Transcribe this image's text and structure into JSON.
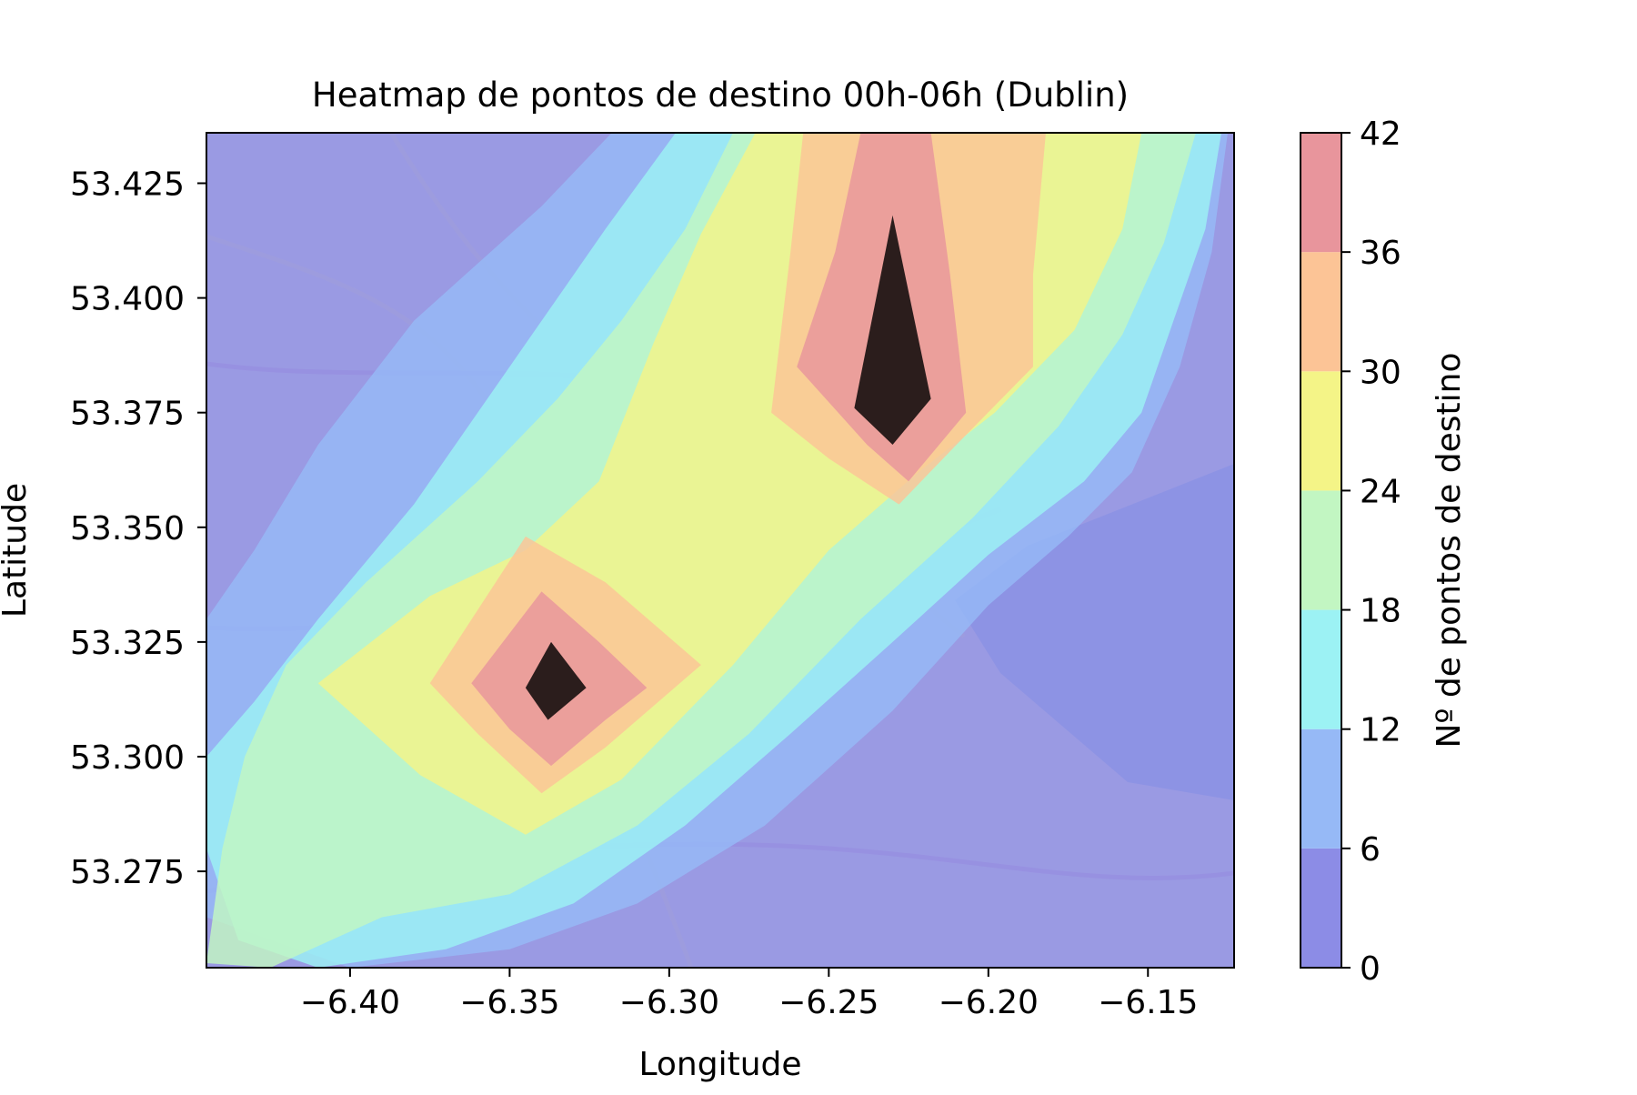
{
  "chart_data": {
    "type": "heatmap",
    "subtype": "filled-contour over map",
    "title": "Heatmap de pontos de destino 00h-06h (Dublin)",
    "xlabel": "Longitude",
    "ylabel": "Latitude",
    "xlim": [
      -6.445,
      -6.123
    ],
    "ylim": [
      53.254,
      53.436
    ],
    "xticks": [
      -6.4,
      -6.35,
      -6.3,
      -6.25,
      -6.2,
      -6.15
    ],
    "xtick_labels": [
      "−6.40",
      "−6.35",
      "−6.30",
      "−6.25",
      "−6.20",
      "−6.15"
    ],
    "yticks": [
      53.275,
      53.3,
      53.325,
      53.35,
      53.375,
      53.4,
      53.425
    ],
    "ytick_labels": [
      "53.275",
      "53.300",
      "53.325",
      "53.350",
      "53.375",
      "53.400",
      "53.425"
    ],
    "colorbar": {
      "label": "Nº de pontos de destino",
      "levels": [
        0,
        6,
        12,
        18,
        24,
        30,
        36,
        42
      ],
      "level_labels": [
        "0",
        "6",
        "12",
        "18",
        "24",
        "30",
        "36",
        "42"
      ],
      "colors": [
        "#8c8ce6",
        "#96b9f6",
        "#9cf2f4",
        "#c2f6c2",
        "#f4f487",
        "#fcc496",
        "#e8959c"
      ]
    },
    "hotspots": [
      {
        "lon": -6.232,
        "lat": 53.392,
        "peak": 42
      },
      {
        "lon": -6.338,
        "lat": 53.316,
        "peak": 42
      }
    ],
    "contours": [
      {
        "level": 0,
        "points": [
          [
            -6.445,
            53.254
          ],
          [
            -6.123,
            53.254
          ],
          [
            -6.123,
            53.436
          ],
          [
            -6.445,
            53.436
          ]
        ]
      },
      {
        "level": 6,
        "points": [
          [
            -6.445,
            53.265
          ],
          [
            -6.4,
            53.254
          ],
          [
            -6.35,
            53.258
          ],
          [
            -6.31,
            53.268
          ],
          [
            -6.27,
            53.285
          ],
          [
            -6.23,
            53.31
          ],
          [
            -6.2,
            53.333
          ],
          [
            -6.175,
            53.348
          ],
          [
            -6.155,
            53.362
          ],
          [
            -6.14,
            53.385
          ],
          [
            -6.13,
            53.41
          ],
          [
            -6.125,
            53.436
          ],
          [
            -6.318,
            53.436
          ],
          [
            -6.34,
            53.42
          ],
          [
            -6.38,
            53.395
          ],
          [
            -6.41,
            53.368
          ],
          [
            -6.43,
            53.345
          ],
          [
            -6.445,
            53.33
          ]
        ]
      },
      {
        "level": 12,
        "points": [
          [
            -6.445,
            53.28
          ],
          [
            -6.435,
            53.26
          ],
          [
            -6.41,
            53.254
          ],
          [
            -6.37,
            53.258
          ],
          [
            -6.33,
            53.268
          ],
          [
            -6.295,
            53.285
          ],
          [
            -6.262,
            53.305
          ],
          [
            -6.23,
            53.325
          ],
          [
            -6.2,
            53.344
          ],
          [
            -6.17,
            53.36
          ],
          [
            -6.152,
            53.375
          ],
          [
            -6.142,
            53.395
          ],
          [
            -6.132,
            53.415
          ],
          [
            -6.127,
            53.436
          ],
          [
            -6.298,
            53.436
          ],
          [
            -6.32,
            53.415
          ],
          [
            -6.35,
            53.385
          ],
          [
            -6.38,
            53.355
          ],
          [
            -6.41,
            53.33
          ],
          [
            -6.43,
            53.312
          ],
          [
            -6.445,
            53.3
          ]
        ]
      },
      {
        "level": 18,
        "points": [
          [
            -6.445,
            53.255
          ],
          [
            -6.425,
            53.254
          ],
          [
            -6.39,
            53.265
          ],
          [
            -6.35,
            53.27
          ],
          [
            -6.31,
            53.285
          ],
          [
            -6.275,
            53.305
          ],
          [
            -6.24,
            53.33
          ],
          [
            -6.205,
            53.352
          ],
          [
            -6.178,
            53.372
          ],
          [
            -6.158,
            53.392
          ],
          [
            -6.145,
            53.412
          ],
          [
            -6.135,
            53.436
          ],
          [
            -6.28,
            53.436
          ],
          [
            -6.295,
            53.415
          ],
          [
            -6.315,
            53.395
          ],
          [
            -6.335,
            53.378
          ],
          [
            -6.36,
            53.36
          ],
          [
            -6.395,
            53.338
          ],
          [
            -6.42,
            53.32
          ],
          [
            -6.433,
            53.3
          ],
          [
            -6.44,
            53.28
          ]
        ]
      },
      {
        "level": 24,
        "points": [
          [
            -6.41,
            53.316
          ],
          [
            -6.378,
            53.296
          ],
          [
            -6.345,
            53.283
          ],
          [
            -6.315,
            53.295
          ],
          [
            -6.28,
            53.32
          ],
          [
            -6.25,
            53.345
          ],
          [
            -6.222,
            53.362
          ],
          [
            -6.198,
            53.375
          ],
          [
            -6.173,
            53.393
          ],
          [
            -6.158,
            53.415
          ],
          [
            -6.152,
            53.436
          ],
          [
            -6.273,
            53.436
          ],
          [
            -6.29,
            53.414
          ],
          [
            -6.305,
            53.39
          ],
          [
            -6.322,
            53.36
          ],
          [
            -6.345,
            53.345
          ],
          [
            -6.375,
            53.335
          ]
        ]
      },
      {
        "level": 30,
        "points": [
          [
            -6.375,
            53.316
          ],
          [
            -6.36,
            53.305
          ],
          [
            -6.34,
            53.292
          ],
          [
            -6.32,
            53.302
          ],
          [
            -6.29,
            53.32
          ],
          [
            -6.32,
            53.338
          ],
          [
            -6.345,
            53.348
          ]
        ]
      },
      {
        "level": 30,
        "points": [
          [
            -6.268,
            53.375
          ],
          [
            -6.25,
            53.365
          ],
          [
            -6.228,
            53.355
          ],
          [
            -6.21,
            53.368
          ],
          [
            -6.186,
            53.385
          ],
          [
            -6.186,
            53.405
          ],
          [
            -6.182,
            53.436
          ],
          [
            -6.258,
            53.436
          ],
          [
            -6.262,
            53.41
          ]
        ]
      },
      {
        "level": 36,
        "points": [
          [
            -6.362,
            53.316
          ],
          [
            -6.35,
            53.306
          ],
          [
            -6.337,
            53.298
          ],
          [
            -6.32,
            53.308
          ],
          [
            -6.307,
            53.315
          ],
          [
            -6.322,
            53.325
          ],
          [
            -6.34,
            53.336
          ]
        ]
      },
      {
        "level": 36,
        "points": [
          [
            -6.26,
            53.385
          ],
          [
            -6.238,
            53.368
          ],
          [
            -6.225,
            53.36
          ],
          [
            -6.207,
            53.375
          ],
          [
            -6.212,
            53.405
          ],
          [
            -6.218,
            53.436
          ],
          [
            -6.24,
            53.436
          ],
          [
            -6.248,
            53.41
          ]
        ]
      },
      {
        "level": 42,
        "points": [
          [
            -6.345,
            53.315
          ],
          [
            -6.338,
            53.308
          ],
          [
            -6.326,
            53.315
          ],
          [
            -6.337,
            53.325
          ]
        ]
      },
      {
        "level": 42,
        "points": [
          [
            -6.242,
            53.376
          ],
          [
            -6.23,
            53.368
          ],
          [
            -6.218,
            53.378
          ],
          [
            -6.23,
            53.418
          ]
        ]
      }
    ]
  }
}
